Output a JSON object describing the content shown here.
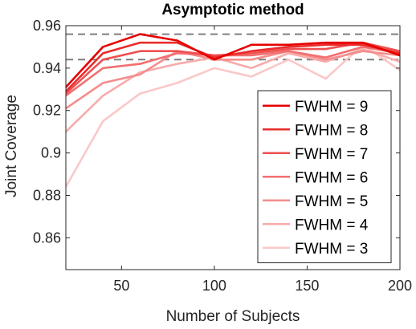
{
  "chart_data": {
    "type": "line",
    "title": "Asymptotic method",
    "xlabel": "Number of Subjects",
    "ylabel": "Joint Coverage",
    "xlim": [
      20,
      200
    ],
    "ylim": [
      0.845,
      0.96
    ],
    "x_ticks": [
      50,
      100,
      150,
      200
    ],
    "y_ticks": [
      0.86,
      0.88,
      0.9,
      0.92,
      0.94,
      0.96
    ],
    "x_tick_labels": [
      "50",
      "100",
      "150",
      "200"
    ],
    "y_tick_labels": [
      "0.86",
      "0.88",
      "0.9",
      "0.92",
      "0.94",
      "0.96"
    ],
    "grid": false,
    "legend_position": "bottom-right",
    "reference_lines": [
      0.956,
      0.944
    ],
    "reference_line_color": "#7f7f7f",
    "x": [
      20,
      40,
      60,
      80,
      100,
      120,
      140,
      160,
      180,
      200
    ],
    "series": [
      {
        "name": "FWHM = 9",
        "color": "#e60000",
        "values": [
          0.931,
          0.95,
          0.956,
          0.953,
          0.944,
          0.951,
          0.951,
          0.952,
          0.952,
          0.946
        ]
      },
      {
        "name": "FWHM = 8",
        "color": "#ea2c2c",
        "values": [
          0.929,
          0.947,
          0.952,
          0.952,
          0.945,
          0.948,
          0.95,
          0.951,
          0.951,
          0.947
        ]
      },
      {
        "name": "FWHM = 7",
        "color": "#ee5050",
        "values": [
          0.928,
          0.944,
          0.948,
          0.948,
          0.946,
          0.947,
          0.949,
          0.949,
          0.952,
          0.948
        ]
      },
      {
        "name": "FWHM = 6",
        "color": "#f26f6f",
        "values": [
          0.927,
          0.94,
          0.942,
          0.947,
          0.946,
          0.946,
          0.948,
          0.945,
          0.95,
          0.947
        ]
      },
      {
        "name": "FWHM = 5",
        "color": "#f48d8d",
        "values": [
          0.921,
          0.933,
          0.937,
          0.948,
          0.944,
          0.944,
          0.948,
          0.944,
          0.948,
          0.946
        ]
      },
      {
        "name": "FWHM = 4",
        "color": "#f7abab",
        "values": [
          0.91,
          0.927,
          0.938,
          0.942,
          0.945,
          0.94,
          0.947,
          0.943,
          0.949,
          0.943
        ]
      },
      {
        "name": "FWHM = 3",
        "color": "#fac8c8",
        "values": [
          0.884,
          0.915,
          0.928,
          0.933,
          0.94,
          0.936,
          0.944,
          0.935,
          0.951,
          0.939
        ]
      }
    ]
  }
}
